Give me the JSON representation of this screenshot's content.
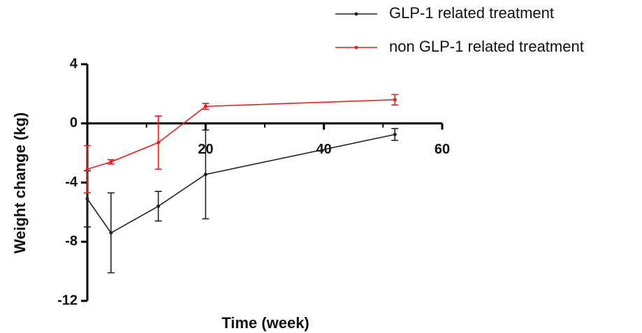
{
  "chart_data": {
    "type": "line",
    "x_label": "Time (week)",
    "y_label": "Weight change (kg)",
    "xlim": [
      0,
      60
    ],
    "xticks": [
      20,
      40,
      60
    ],
    "xminorticks": [
      10,
      30,
      50
    ],
    "ylim": [
      -12,
      4
    ],
    "yticks": [
      -12,
      -8,
      -4,
      0,
      4
    ],
    "legend": "top-right",
    "series": [
      {
        "name": "GLP-1 related treatment",
        "color": "#222222",
        "x": [
          0,
          4,
          12,
          20,
          52
        ],
        "values": [
          -5.1,
          -7.4,
          -5.6,
          -3.45,
          -0.75
        ],
        "errors": [
          1.9,
          2.7,
          1.0,
          3.0,
          0.4
        ]
      },
      {
        "name": "non GLP-1 related treatment",
        "color": "#ee1c1c",
        "x": [
          0,
          4,
          12,
          20,
          52
        ],
        "values": [
          -3.1,
          -2.6,
          -1.3,
          1.15,
          1.6
        ],
        "errors": [
          1.6,
          0.15,
          1.8,
          0.2,
          0.35
        ]
      }
    ]
  }
}
